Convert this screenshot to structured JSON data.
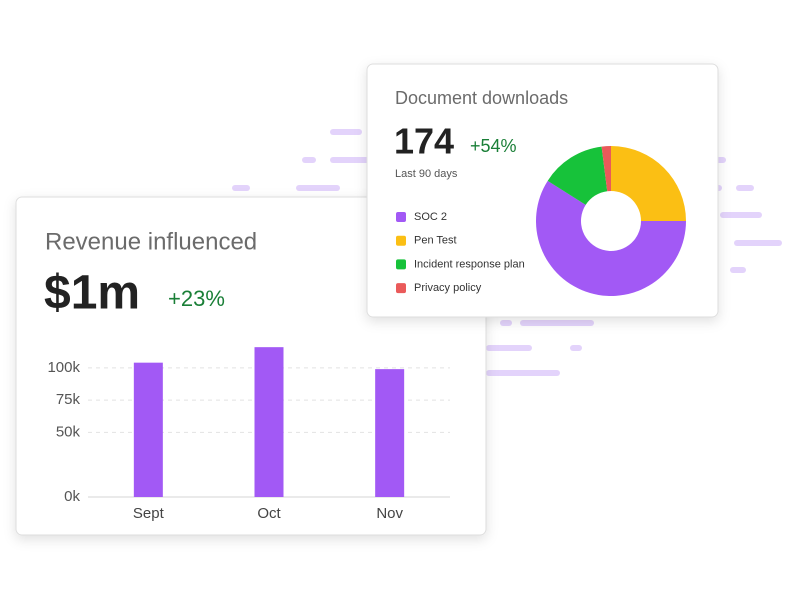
{
  "chart_data": [
    {
      "type": "bar",
      "title": "Revenue influenced",
      "headline": "$1m",
      "change": "+23%",
      "categories": [
        "Sept",
        "Oct",
        "Nov"
      ],
      "values": [
        104,
        116,
        99
      ],
      "color": "#a259f5",
      "ylim": [
        0,
        120
      ],
      "yticks": [
        {
          "value": 0,
          "label": "0k"
        },
        {
          "value": 50,
          "label": "50k"
        },
        {
          "value": 75,
          "label": "75k"
        },
        {
          "value": 100,
          "label": "100k"
        }
      ],
      "grid": true
    },
    {
      "type": "pie",
      "title": "Document downloads",
      "headline": 174,
      "change": "+54%",
      "subtitle": "Last 90 days",
      "categories": [
        "SOC 2",
        "Pen Test",
        "Incident response plan",
        "Privacy policy"
      ],
      "values": [
        59,
        25,
        14,
        2
      ],
      "colors": [
        "#a259f5",
        "#fbbf14",
        "#17c23a",
        "#ea5a5a"
      ],
      "donut": true,
      "start_order": [
        1,
        0,
        2,
        3
      ]
    }
  ]
}
